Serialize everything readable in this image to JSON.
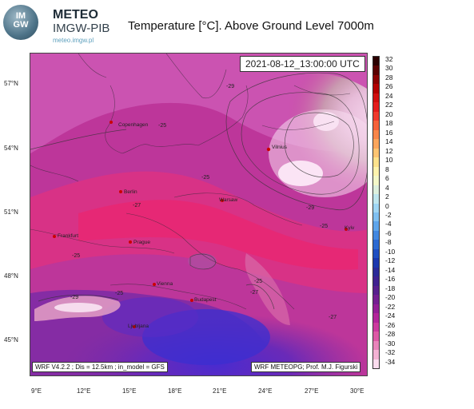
{
  "header": {
    "logo_text_line1": "IM",
    "logo_text_line2": "GW",
    "brand_title": "METEO",
    "brand_subtitle": "IMGW-PIB",
    "brand_url": "meteo.imgw.pl",
    "chart_title": "Temperature [°C]. Above Ground Level 7000m"
  },
  "timestamp": "2021-08-12_13:00:00 UTC",
  "footer": {
    "left": "WRF V4.2.2 ; Dis = 12.5km ; in_model = GFS",
    "right": "WRF METEOPG; Prof. M.J. Figurski"
  },
  "lat_ticks": [
    "57°N",
    "54°N",
    "51°N",
    "48°N",
    "45°N"
  ],
  "lon_ticks": [
    "9°E",
    "12°E",
    "15°E",
    "18°E",
    "21°E",
    "24°E",
    "27°E",
    "30°E"
  ],
  "cities": [
    {
      "name": "Copenhagen"
    },
    {
      "name": "Vilnius"
    },
    {
      "name": "Berlin"
    },
    {
      "name": "Warsaw"
    },
    {
      "name": "Frankfurt"
    },
    {
      "name": "Prague"
    },
    {
      "name": "Kyiv"
    },
    {
      "name": "Vienna"
    },
    {
      "name": "Budapest"
    },
    {
      "name": "Ljubljana"
    }
  ],
  "contour_labels": [
    "-29",
    "-25",
    "-25",
    "-29",
    "-25",
    "-27",
    "-25",
    "-25",
    "-29",
    "-25",
    "-27",
    "-27"
  ],
  "colorbar": {
    "labels": [
      "32",
      "30",
      "28",
      "26",
      "24",
      "22",
      "20",
      "18",
      "16",
      "14",
      "12",
      "10",
      "8",
      "6",
      "4",
      "2",
      "0",
      "-2",
      "-4",
      "-6",
      "-8",
      "-10",
      "-12",
      "-14",
      "-16",
      "-18",
      "-20",
      "-22",
      "-24",
      "-26",
      "-28",
      "-30",
      "-32",
      "-34"
    ],
    "colors": [
      "#2b0000",
      "#5a0000",
      "#8a0000",
      "#b30000",
      "#d10f0f",
      "#e41d1d",
      "#f03a2e",
      "#f5613a",
      "#f9864a",
      "#fba55c",
      "#fdc472",
      "#fee28c",
      "#fff3ad",
      "#f4f8c8",
      "#ddf0dd",
      "#bfe6ee",
      "#9fd6f4",
      "#7fc0f1",
      "#5ea5ea",
      "#4288e0",
      "#2c6ad3",
      "#1f4fc2",
      "#1b38ae",
      "#2a2a98",
      "#3f2290",
      "#58208e",
      "#751f92",
      "#941f96",
      "#b3269a",
      "#cc3b9e",
      "#dd5aa6",
      "#e984bb",
      "#f3b2d3",
      "#fbdcee"
    ]
  }
}
